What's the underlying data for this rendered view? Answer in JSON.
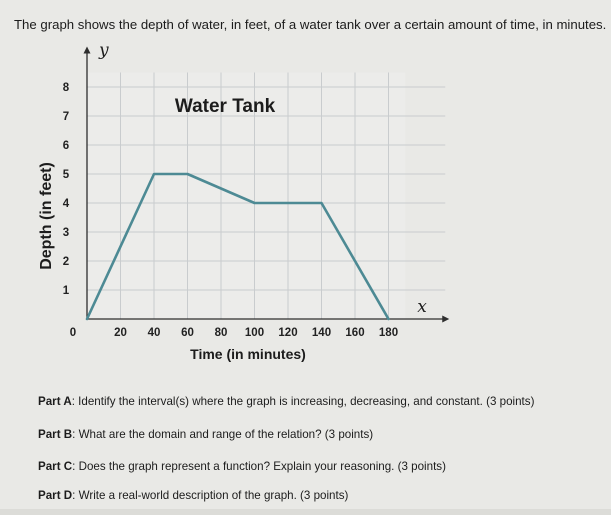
{
  "intro": "The graph shows the depth of water, in feet, of a water tank over a certain amount of time, in minutes.",
  "parts": [
    {
      "label": "Part A",
      "text": ": Identify the interval(s) where the graph is increasing, decreasing, and constant. (3 points)"
    },
    {
      "label": "Part B",
      "text": ": What are the domain and range of the relation? (3 points)"
    },
    {
      "label": "Part C",
      "text": ": Does the graph represent a function? Explain your reasoning. (3 points)"
    },
    {
      "label": "Part D",
      "text": ": Write a real-world description of the graph. (3 points)"
    }
  ],
  "chart_data": {
    "type": "line",
    "title": "Water Tank",
    "xlabel": "Time (in minutes)",
    "ylabel": "Depth (in feet)",
    "x_axis_letter": "x",
    "y_axis_letter": "y",
    "xlim": [
      0,
      190
    ],
    "ylim": [
      0,
      8.5
    ],
    "xticks": [
      0,
      20,
      40,
      60,
      80,
      100,
      120,
      140,
      160,
      180
    ],
    "yticks": [
      1,
      2,
      3,
      4,
      5,
      6,
      7,
      8
    ],
    "grid": true,
    "series": [
      {
        "x": [
          0,
          40,
          60,
          100,
          140,
          180
        ],
        "y": [
          0,
          5,
          5,
          4,
          4,
          0
        ]
      }
    ],
    "colors": {
      "line": "#4d8a94",
      "grid": "#c9ccce",
      "axis": "#2e2e2e",
      "plot_bg": "#ececea"
    }
  }
}
